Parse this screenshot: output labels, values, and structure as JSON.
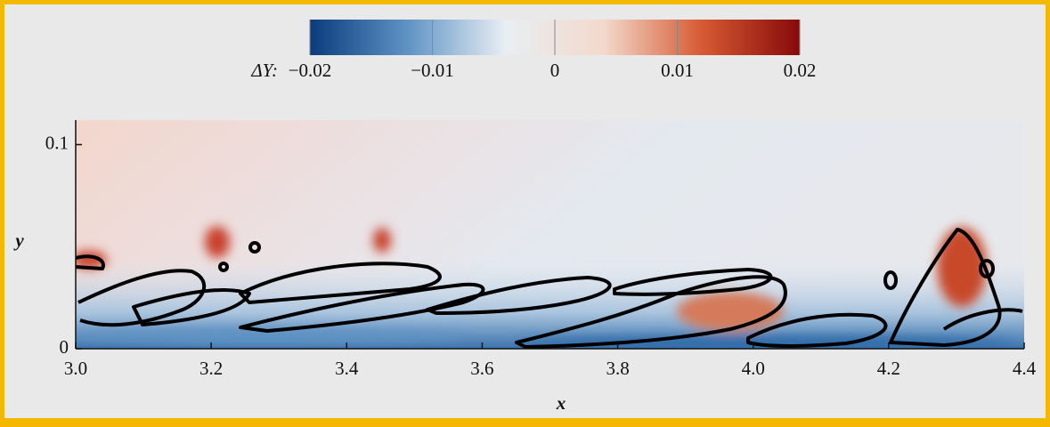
{
  "chart_data": {
    "type": "field",
    "xlabel": "x",
    "ylabel": "y",
    "xlim": [
      3.0,
      4.4
    ],
    "xticks": [
      {
        "value": 3.0,
        "label": "3.0"
      },
      3.2,
      3.4,
      3.6,
      3.8,
      {
        "value": 4.0,
        "label": "4.0"
      },
      4.2,
      4.4
    ],
    "ylim": [
      0,
      0.112
    ],
    "yticks": [
      0,
      0.1
    ],
    "colorbar": {
      "label": "ΔY:",
      "lim": [
        -0.02,
        0.02
      ],
      "ticks": [
        {
          "value": -0.02,
          "label": "−0.02"
        },
        {
          "value": -0.01,
          "label": "−0.01"
        },
        0,
        0.01,
        0.02
      ],
      "colors": [
        "#0b3c7d",
        "#5f93c4",
        "#e9eef3",
        "#f3d9cc",
        "#d65a33",
        "#870a0a"
      ]
    }
  }
}
